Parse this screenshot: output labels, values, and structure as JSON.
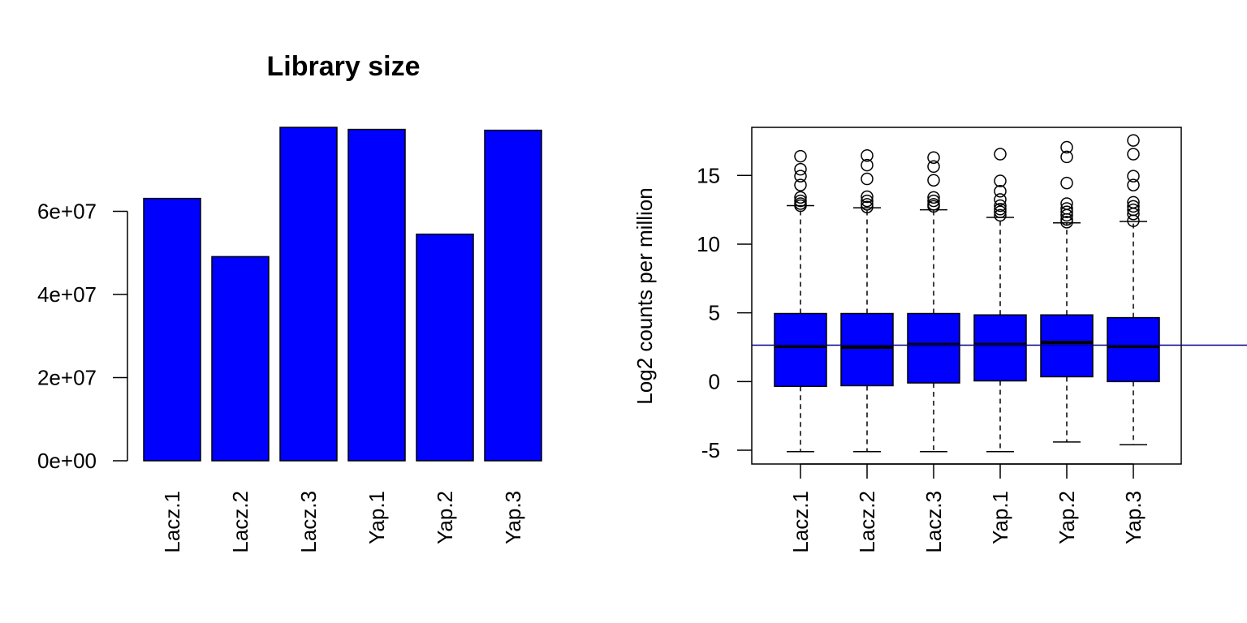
{
  "chart_data": [
    {
      "type": "bar",
      "title": "Library size",
      "xlabel": "",
      "ylabel": "",
      "categories": [
        "Lacz.1",
        "Lacz.2",
        "Lacz.3",
        "Yap.1",
        "Yap.2",
        "Yap.3"
      ],
      "values": [
        63100000,
        49100000,
        80200000,
        79700000,
        54500000,
        79500000
      ],
      "ylim": [
        0,
        80200000
      ],
      "yticks": [
        0,
        20000000,
        40000000,
        60000000
      ],
      "ytick_labels": [
        "0e+00",
        "2e+07",
        "4e+07",
        "6e+07"
      ],
      "bar_color": "#0000ff",
      "grid": false
    },
    {
      "type": "boxplot",
      "title": "",
      "xlabel": "",
      "ylabel": "Log2 counts per million",
      "categories": [
        "Lacz.1",
        "Lacz.2",
        "Lacz.3",
        "Yap.1",
        "Yap.2",
        "Yap.3"
      ],
      "ylim": [
        -6,
        18.5
      ],
      "yticks": [
        -5,
        0,
        5,
        10,
        15
      ],
      "ytick_labels": [
        "-5",
        "0",
        "5",
        "10",
        "15"
      ],
      "box_color": "#0000ff",
      "hline": 2.65,
      "hline_color": "#00008b",
      "grid": false,
      "boxes": [
        {
          "lower_whisker": -5.1,
          "q1": -0.35,
          "median": 2.55,
          "q3": 4.95,
          "upper_whisker": 12.8,
          "outliers": [
            12.8,
            12.95,
            13.15,
            13.4,
            14.3,
            14.95,
            15.45,
            16.4
          ]
        },
        {
          "lower_whisker": -5.1,
          "q1": -0.3,
          "median": 2.5,
          "q3": 4.95,
          "upper_whisker": 12.65,
          "outliers": [
            12.7,
            12.9,
            13.15,
            13.45,
            14.75,
            15.75,
            16.45
          ]
        },
        {
          "lower_whisker": -5.1,
          "q1": -0.1,
          "median": 2.7,
          "q3": 4.95,
          "upper_whisker": 12.5,
          "outliers": [
            12.75,
            12.9,
            13.15,
            13.4,
            14.65,
            15.65,
            16.3
          ]
        },
        {
          "lower_whisker": -5.1,
          "q1": 0.05,
          "median": 2.7,
          "q3": 4.85,
          "upper_whisker": 11.95,
          "outliers": [
            12.1,
            12.35,
            12.55,
            12.8,
            13.25,
            13.85,
            14.6,
            16.55
          ]
        },
        {
          "lower_whisker": -4.4,
          "q1": 0.35,
          "median": 2.85,
          "q3": 4.85,
          "upper_whisker": 11.55,
          "outliers": [
            11.6,
            11.8,
            12.1,
            12.35,
            12.6,
            12.95,
            14.45,
            16.35,
            17.05
          ]
        },
        {
          "lower_whisker": -4.6,
          "q1": 0.0,
          "median": 2.55,
          "q3": 4.65,
          "upper_whisker": 11.65,
          "outliers": [
            11.7,
            12.2,
            12.5,
            12.75,
            13.05,
            14.3,
            14.95,
            16.55,
            17.55
          ]
        }
      ]
    }
  ]
}
